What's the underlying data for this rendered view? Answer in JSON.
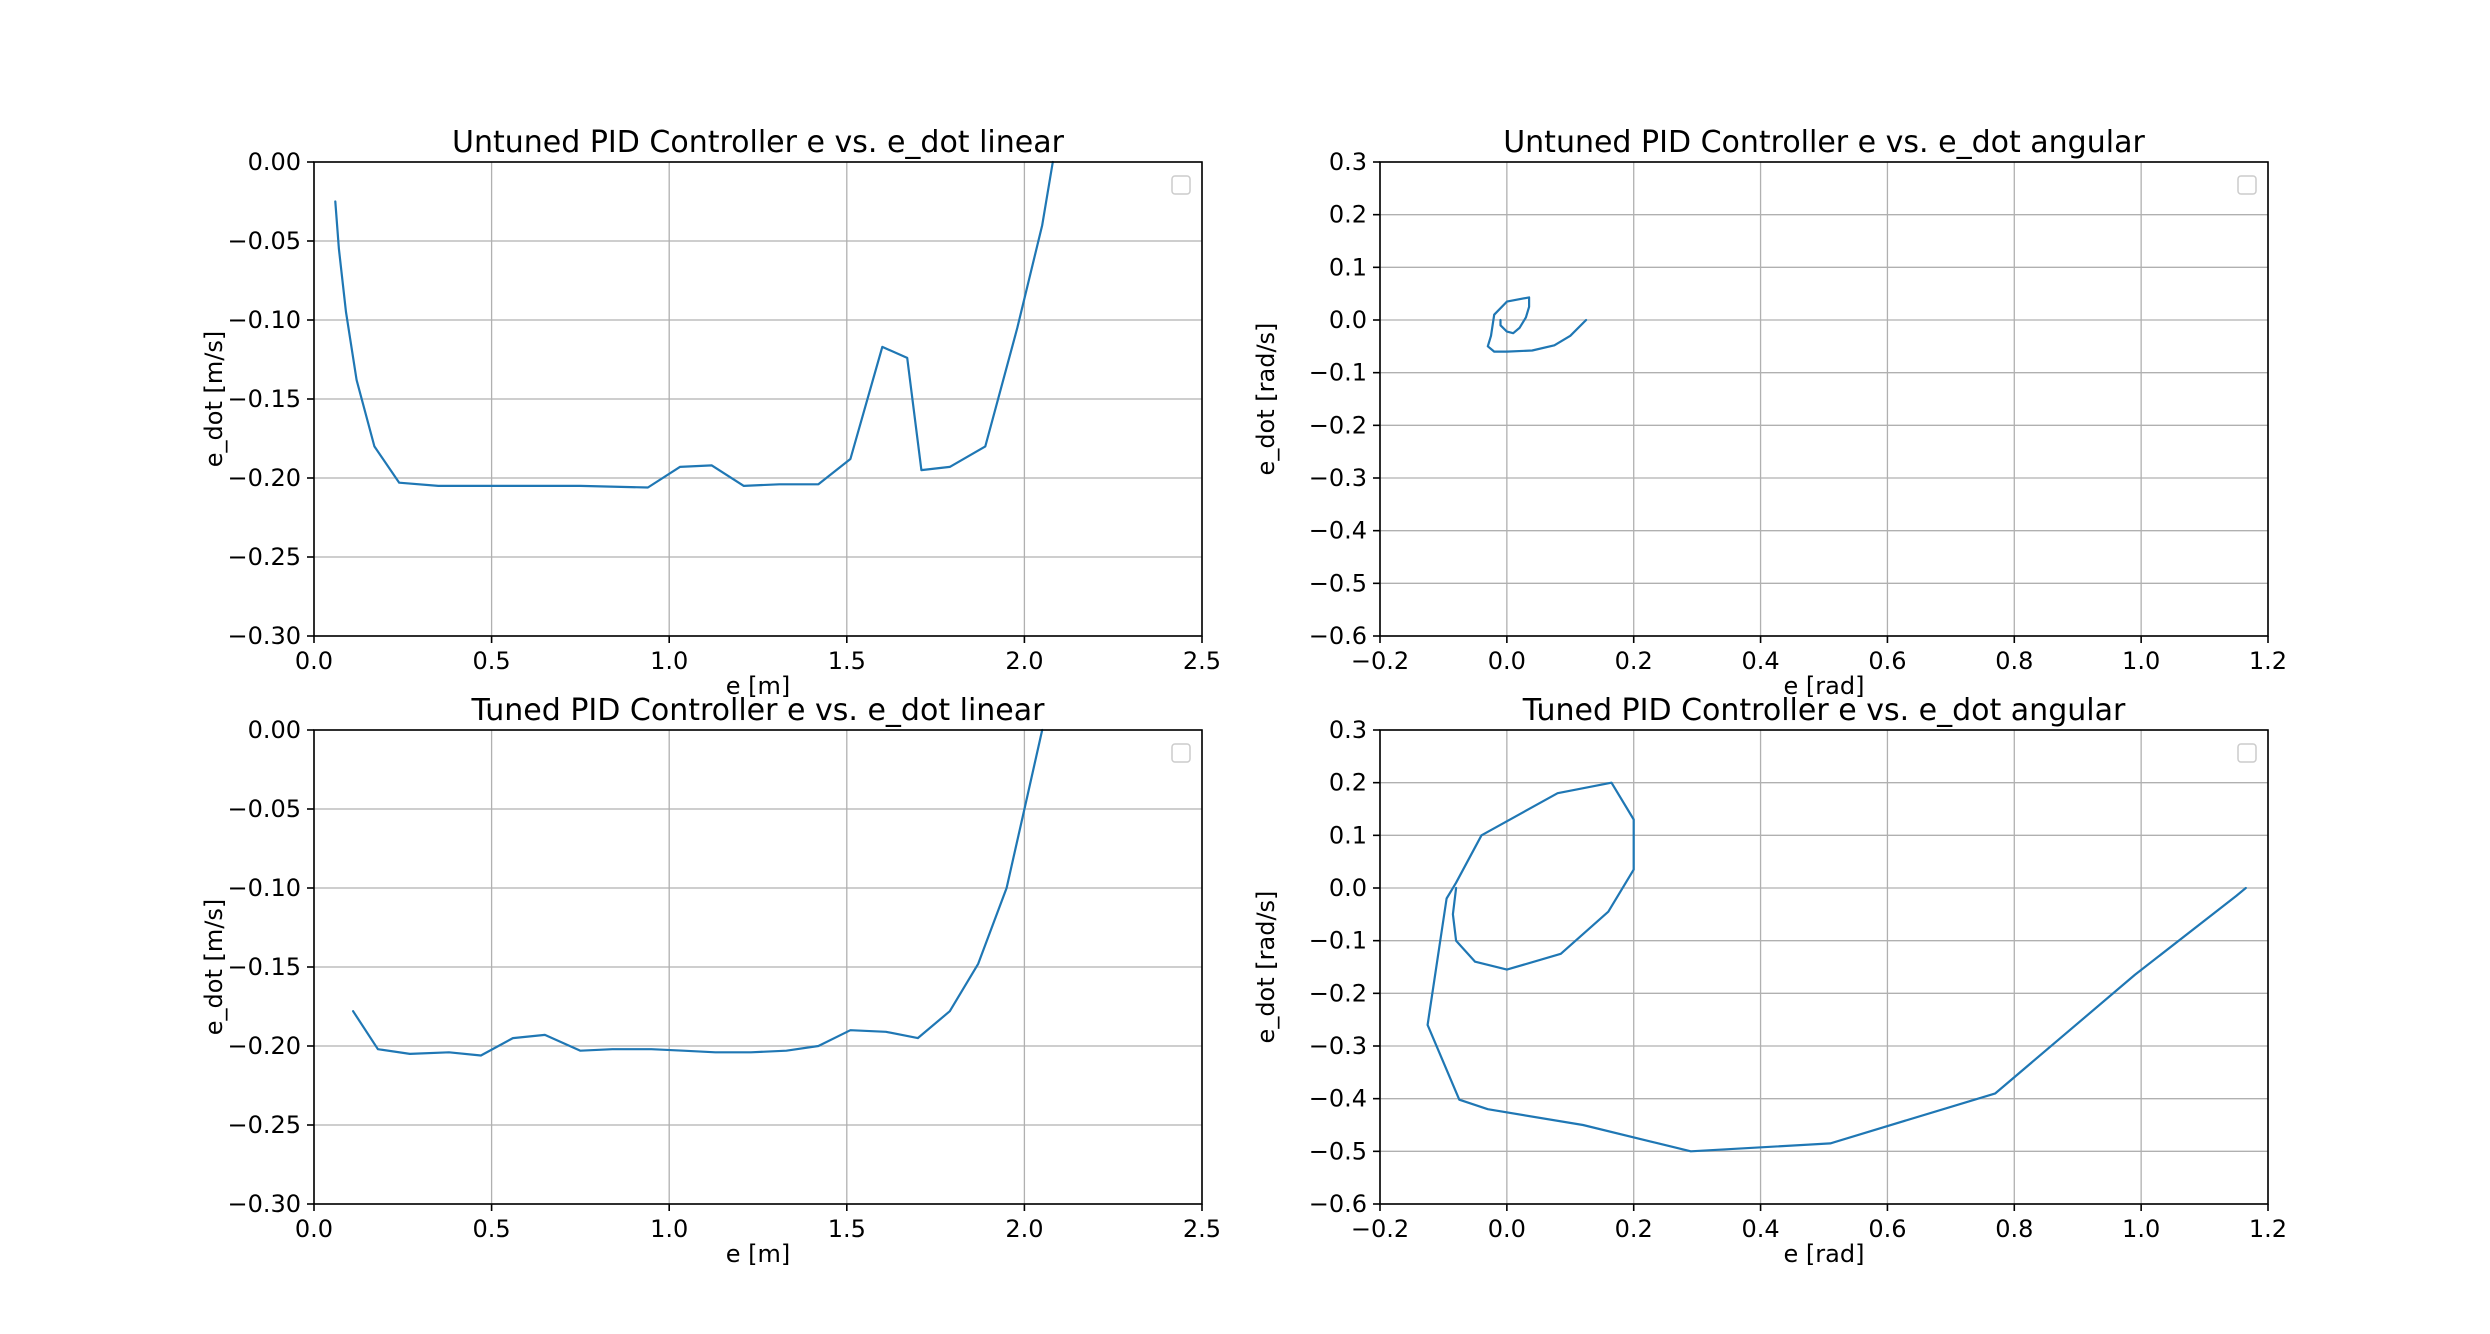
{
  "figure": {
    "background": "#ffffff",
    "line_color": "#1f77b4"
  },
  "chart_data": [
    {
      "type": "line",
      "title": "Untuned PID Controller e vs. e_dot linear",
      "xlabel": "e [m]",
      "ylabel": "e_dot [m/s]",
      "xlim": [
        0.0,
        2.5
      ],
      "ylim": [
        -0.3,
        0.0
      ],
      "xticks": [
        "0.0",
        "0.5",
        "1.0",
        "1.5",
        "2.0",
        "2.5"
      ],
      "yticks": [
        "0.00",
        "−0.05",
        "−0.10",
        "−0.15",
        "−0.20",
        "−0.25",
        "−0.30"
      ],
      "grid": true,
      "legend": "top-right (empty)",
      "series": [
        {
          "x": [
            0.06,
            0.07,
            0.09,
            0.12,
            0.17,
            0.24,
            0.35,
            0.5,
            0.75,
            0.94,
            1.03,
            1.12,
            1.21,
            1.31,
            1.42,
            1.51,
            1.6,
            1.67,
            1.71,
            1.79,
            1.89,
            1.98,
            2.05,
            2.08
          ],
          "y": [
            -0.025,
            -0.055,
            -0.095,
            -0.138,
            -0.18,
            -0.203,
            -0.205,
            -0.205,
            -0.205,
            -0.206,
            -0.193,
            -0.192,
            -0.205,
            -0.204,
            -0.204,
            -0.188,
            -0.117,
            -0.124,
            -0.195,
            -0.193,
            -0.18,
            -0.105,
            -0.04,
            0.0
          ]
        }
      ]
    },
    {
      "type": "line",
      "title": "Untuned PID Controller e vs. e_dot angular",
      "xlabel": "e [rad]",
      "ylabel": "e_dot [rad/s]",
      "xlim": [
        -0.2,
        1.2
      ],
      "ylim": [
        -0.6,
        0.3
      ],
      "xticks": [
        "−0.2",
        "0.0",
        "0.2",
        "0.4",
        "0.6",
        "0.8",
        "1.0",
        "1.2"
      ],
      "yticks": [
        "0.3",
        "0.2",
        "0.1",
        "0.0",
        "−0.1",
        "−0.2",
        "−0.3",
        "−0.4",
        "−0.5",
        "−0.6"
      ],
      "grid": true,
      "legend": "top-right (empty)",
      "series": [
        {
          "x": [
            0.125,
            0.1,
            0.075,
            0.04,
            0.0,
            -0.02,
            -0.03,
            -0.025,
            -0.02,
            0.0,
            0.035,
            0.035,
            0.03,
            0.02,
            0.01,
            0.0,
            -0.01,
            -0.01
          ],
          "y": [
            0.0,
            -0.03,
            -0.048,
            -0.058,
            -0.06,
            -0.06,
            -0.05,
            -0.03,
            0.01,
            0.035,
            0.043,
            0.025,
            0.005,
            -0.015,
            -0.025,
            -0.022,
            -0.01,
            0.0
          ]
        }
      ]
    },
    {
      "type": "line",
      "title": "Tuned PID Controller e vs. e_dot linear",
      "xlabel": "e [m]",
      "ylabel": "e_dot [m/s]",
      "xlim": [
        0.0,
        2.5
      ],
      "ylim": [
        -0.3,
        0.0
      ],
      "xticks": [
        "0.0",
        "0.5",
        "1.0",
        "1.5",
        "2.0",
        "2.5"
      ],
      "yticks": [
        "0.00",
        "−0.05",
        "−0.10",
        "−0.15",
        "−0.20",
        "−0.25",
        "−0.30"
      ],
      "grid": true,
      "legend": "top-right (empty)",
      "series": [
        {
          "x": [
            0.11,
            0.18,
            0.27,
            0.38,
            0.47,
            0.56,
            0.65,
            0.75,
            0.84,
            0.95,
            1.04,
            1.13,
            1.23,
            1.33,
            1.42,
            1.51,
            1.61,
            1.7,
            1.79,
            1.87,
            1.95,
            2.01,
            2.05
          ],
          "y": [
            -0.178,
            -0.202,
            -0.205,
            -0.204,
            -0.206,
            -0.195,
            -0.193,
            -0.203,
            -0.202,
            -0.202,
            -0.203,
            -0.204,
            -0.204,
            -0.203,
            -0.2,
            -0.19,
            -0.191,
            -0.195,
            -0.178,
            -0.148,
            -0.1,
            -0.04,
            0.0
          ]
        }
      ]
    },
    {
      "type": "line",
      "title": "Tuned PID Controller e vs. e_dot angular",
      "xlabel": "e [rad]",
      "ylabel": "e_dot [rad/s]",
      "xlim": [
        -0.2,
        1.2
      ],
      "ylim": [
        -0.6,
        0.3
      ],
      "xticks": [
        "−0.2",
        "0.0",
        "0.2",
        "0.4",
        "0.6",
        "0.8",
        "1.0",
        "1.2"
      ],
      "yticks": [
        "0.3",
        "0.2",
        "0.1",
        "0.0",
        "−0.1",
        "−0.2",
        "−0.3",
        "−0.4",
        "−0.5",
        "−0.6"
      ],
      "grid": true,
      "legend": "top-right (empty)",
      "series": [
        {
          "x": [
            1.165,
            1.15,
            0.99,
            0.77,
            0.51,
            0.29,
            0.12,
            -0.03,
            -0.075,
            -0.125,
            -0.095,
            -0.08,
            -0.04,
            0.08,
            0.165,
            0.2,
            0.2,
            0.16,
            0.085,
            0.0,
            -0.05,
            -0.08,
            -0.085,
            -0.08
          ],
          "y": [
            0.0,
            -0.015,
            -0.165,
            -0.39,
            -0.485,
            -0.5,
            -0.45,
            -0.42,
            -0.402,
            -0.26,
            -0.02,
            0.01,
            0.1,
            0.18,
            0.2,
            0.13,
            0.035,
            -0.045,
            -0.125,
            -0.155,
            -0.14,
            -0.1,
            -0.05,
            0.0
          ]
        }
      ]
    }
  ]
}
